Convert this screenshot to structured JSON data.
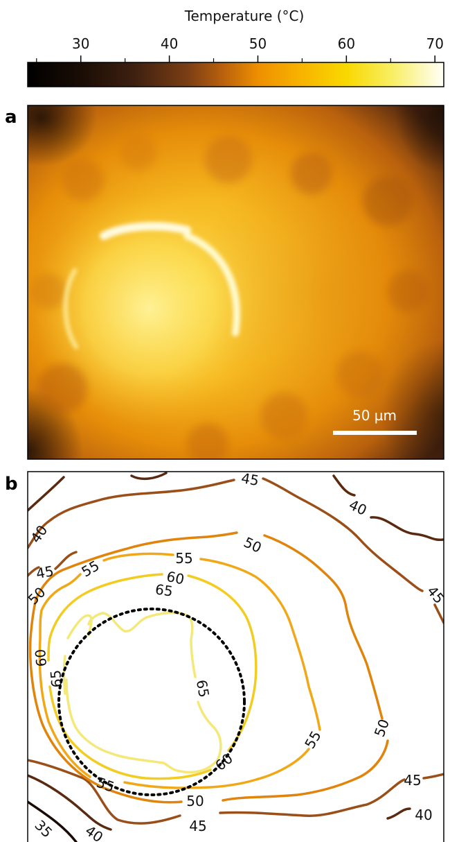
{
  "colorbar": {
    "title": "Temperature (°C)",
    "ticks": [
      30,
      40,
      50,
      60,
      70
    ],
    "minor_ticks": [
      25,
      35,
      45,
      55,
      65
    ],
    "range": [
      24,
      71
    ],
    "stops": [
      {
        "t": 24,
        "color": "#000000"
      },
      {
        "t": 30,
        "color": "#1a0d05"
      },
      {
        "t": 36,
        "color": "#3d2010"
      },
      {
        "t": 42,
        "color": "#7a3e14"
      },
      {
        "t": 46,
        "color": "#b8600d"
      },
      {
        "t": 50,
        "color": "#ee8f00"
      },
      {
        "t": 55,
        "color": "#f8b400"
      },
      {
        "t": 60,
        "color": "#f9d800"
      },
      {
        "t": 65,
        "color": "#f8ee60"
      },
      {
        "t": 71,
        "color": "#fffff8"
      }
    ]
  },
  "panel_a": {
    "label": "a",
    "scale_bar": "50 µm"
  },
  "panel_b": {
    "label": "b",
    "contour_levels": [
      35,
      40,
      45,
      50,
      55,
      60,
      65
    ],
    "labels": {
      "l35": "35",
      "l40": "40",
      "l45": "45",
      "l50": "50",
      "l55": "55",
      "l60": "60",
      "l65": "65"
    },
    "level_colors": {
      "35": "#1a0a04",
      "40": "#5a2a10",
      "45": "#9a4e18",
      "50": "#e0840c",
      "55": "#f0a818",
      "60": "#f2cc20",
      "65": "#f4e878"
    }
  }
}
